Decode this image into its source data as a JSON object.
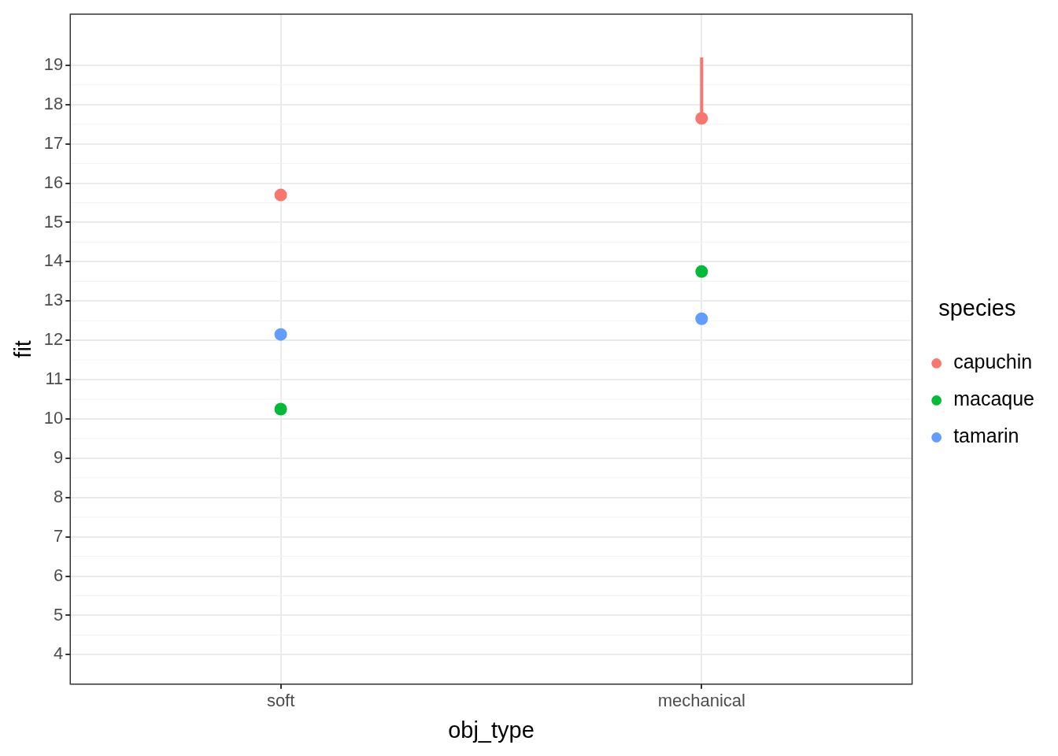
{
  "chart_data": {
    "type": "scatter",
    "xlabel": "obj_type",
    "ylabel": "fit",
    "legend_title": "species",
    "categories": [
      "soft",
      "mechanical"
    ],
    "series": [
      {
        "name": "capuchin",
        "color": "#f8766d",
        "values": [
          15.7,
          17.65
        ],
        "errors": [
          null,
          [
            17.65,
            19.2
          ]
        ]
      },
      {
        "name": "macaque",
        "color": "#00ba38",
        "values": [
          10.25,
          13.75
        ]
      },
      {
        "name": "tamarin",
        "color": "#619cff",
        "values": [
          12.15,
          12.55
        ]
      }
    ],
    "ylim": [
      3.25,
      20.3
    ],
    "yticks": [
      4,
      5,
      6,
      7,
      8,
      9,
      10,
      11,
      12,
      13,
      14,
      15,
      16,
      17,
      18,
      19
    ],
    "grid": true,
    "legend": "right",
    "marker": "circle"
  }
}
